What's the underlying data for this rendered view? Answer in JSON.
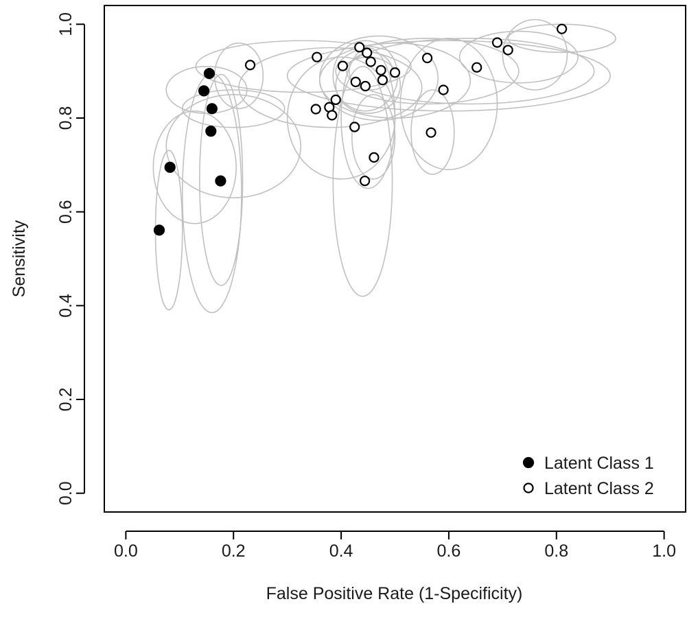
{
  "chart_data": {
    "type": "scatter",
    "title": "",
    "xlabel": "False Positive Rate (1-Specificity)",
    "ylabel": "Sensitivity",
    "xlim": [
      -0.04,
      1.04
    ],
    "ylim": [
      -0.04,
      1.04
    ],
    "xticks": [
      "0.0",
      "0.2",
      "0.4",
      "0.6",
      "0.8",
      "1.0"
    ],
    "yticks": [
      "0.0",
      "0.2",
      "0.4",
      "0.6",
      "0.8",
      "1.0"
    ],
    "grid": false,
    "legend": {
      "placement": "bottom-right",
      "entries": [
        "Latent Class 1",
        "Latent Class 2"
      ]
    },
    "colors": {
      "class1_fill": "#000000",
      "class2_fill": "#ffffff",
      "marker_stroke": "#000000",
      "ellipse_stroke": "#c0c0c0",
      "axes": "#000000"
    },
    "series": [
      {
        "name": "Latent Class 1",
        "marker": "filled-circle",
        "points": [
          {
            "x": 0.155,
            "y": 0.895
          },
          {
            "x": 0.145,
            "y": 0.858
          },
          {
            "x": 0.16,
            "y": 0.82
          },
          {
            "x": 0.158,
            "y": 0.772
          },
          {
            "x": 0.082,
            "y": 0.695
          },
          {
            "x": 0.176,
            "y": 0.666
          },
          {
            "x": 0.062,
            "y": 0.561
          }
        ]
      },
      {
        "name": "Latent Class 2",
        "marker": "open-circle",
        "points": [
          {
            "x": 0.231,
            "y": 0.913
          },
          {
            "x": 0.355,
            "y": 0.93
          },
          {
            "x": 0.403,
            "y": 0.911
          },
          {
            "x": 0.434,
            "y": 0.951
          },
          {
            "x": 0.448,
            "y": 0.939
          },
          {
            "x": 0.455,
            "y": 0.92
          },
          {
            "x": 0.474,
            "y": 0.902
          },
          {
            "x": 0.477,
            "y": 0.881
          },
          {
            "x": 0.5,
            "y": 0.897
          },
          {
            "x": 0.427,
            "y": 0.877
          },
          {
            "x": 0.445,
            "y": 0.868
          },
          {
            "x": 0.39,
            "y": 0.839
          },
          {
            "x": 0.378,
            "y": 0.823
          },
          {
            "x": 0.353,
            "y": 0.819
          },
          {
            "x": 0.383,
            "y": 0.806
          },
          {
            "x": 0.425,
            "y": 0.781
          },
          {
            "x": 0.461,
            "y": 0.716
          },
          {
            "x": 0.444,
            "y": 0.666
          },
          {
            "x": 0.56,
            "y": 0.928
          },
          {
            "x": 0.59,
            "y": 0.86
          },
          {
            "x": 0.567,
            "y": 0.769
          },
          {
            "x": 0.652,
            "y": 0.908
          },
          {
            "x": 0.69,
            "y": 0.961
          },
          {
            "x": 0.71,
            "y": 0.945
          },
          {
            "x": 0.81,
            "y": 0.99
          }
        ]
      }
    ],
    "confidence_ellipses": [
      {
        "cx": 0.08,
        "cy": 0.561,
        "rx": 0.025,
        "ry": 0.17
      },
      {
        "cx": 0.16,
        "cy": 0.64,
        "rx": 0.055,
        "ry": 0.255
      },
      {
        "cx": 0.128,
        "cy": 0.695,
        "rx": 0.077,
        "ry": 0.12
      },
      {
        "cx": 0.177,
        "cy": 0.668,
        "rx": 0.04,
        "ry": 0.225
      },
      {
        "cx": 0.2,
        "cy": 0.74,
        "rx": 0.125,
        "ry": 0.11
      },
      {
        "cx": 0.2,
        "cy": 0.82,
        "rx": 0.095,
        "ry": 0.04
      },
      {
        "cx": 0.15,
        "cy": 0.86,
        "rx": 0.075,
        "ry": 0.05
      },
      {
        "cx": 0.21,
        "cy": 0.89,
        "rx": 0.045,
        "ry": 0.07
      },
      {
        "cx": 0.33,
        "cy": 0.91,
        "rx": 0.2,
        "ry": 0.055
      },
      {
        "cx": 0.38,
        "cy": 0.865,
        "rx": 0.17,
        "ry": 0.085
      },
      {
        "cx": 0.4,
        "cy": 0.8,
        "rx": 0.1,
        "ry": 0.13
      },
      {
        "cx": 0.47,
        "cy": 0.885,
        "rx": 0.11,
        "ry": 0.09
      },
      {
        "cx": 0.5,
        "cy": 0.88,
        "rx": 0.14,
        "ry": 0.08
      },
      {
        "cx": 0.445,
        "cy": 0.89,
        "rx": 0.06,
        "ry": 0.075
      },
      {
        "cx": 0.455,
        "cy": 0.9,
        "rx": 0.04,
        "ry": 0.04
      },
      {
        "cx": 0.45,
        "cy": 0.87,
        "rx": 0.06,
        "ry": 0.06
      },
      {
        "cx": 0.45,
        "cy": 0.8,
        "rx": 0.05,
        "ry": 0.15
      },
      {
        "cx": 0.44,
        "cy": 0.665,
        "rx": 0.055,
        "ry": 0.245
      },
      {
        "cx": 0.46,
        "cy": 0.76,
        "rx": 0.04,
        "ry": 0.09
      },
      {
        "cx": 0.56,
        "cy": 0.9,
        "rx": 0.17,
        "ry": 0.07
      },
      {
        "cx": 0.6,
        "cy": 0.83,
        "rx": 0.09,
        "ry": 0.14
      },
      {
        "cx": 0.57,
        "cy": 0.77,
        "rx": 0.04,
        "ry": 0.09
      },
      {
        "cx": 0.6,
        "cy": 0.89,
        "rx": 0.3,
        "ry": 0.075
      },
      {
        "cx": 0.64,
        "cy": 0.9,
        "rx": 0.23,
        "ry": 0.07
      },
      {
        "cx": 0.73,
        "cy": 0.93,
        "rx": 0.11,
        "ry": 0.055
      },
      {
        "cx": 0.81,
        "cy": 0.97,
        "rx": 0.1,
        "ry": 0.03
      },
      {
        "cx": 0.76,
        "cy": 0.935,
        "rx": 0.06,
        "ry": 0.075
      }
    ]
  }
}
